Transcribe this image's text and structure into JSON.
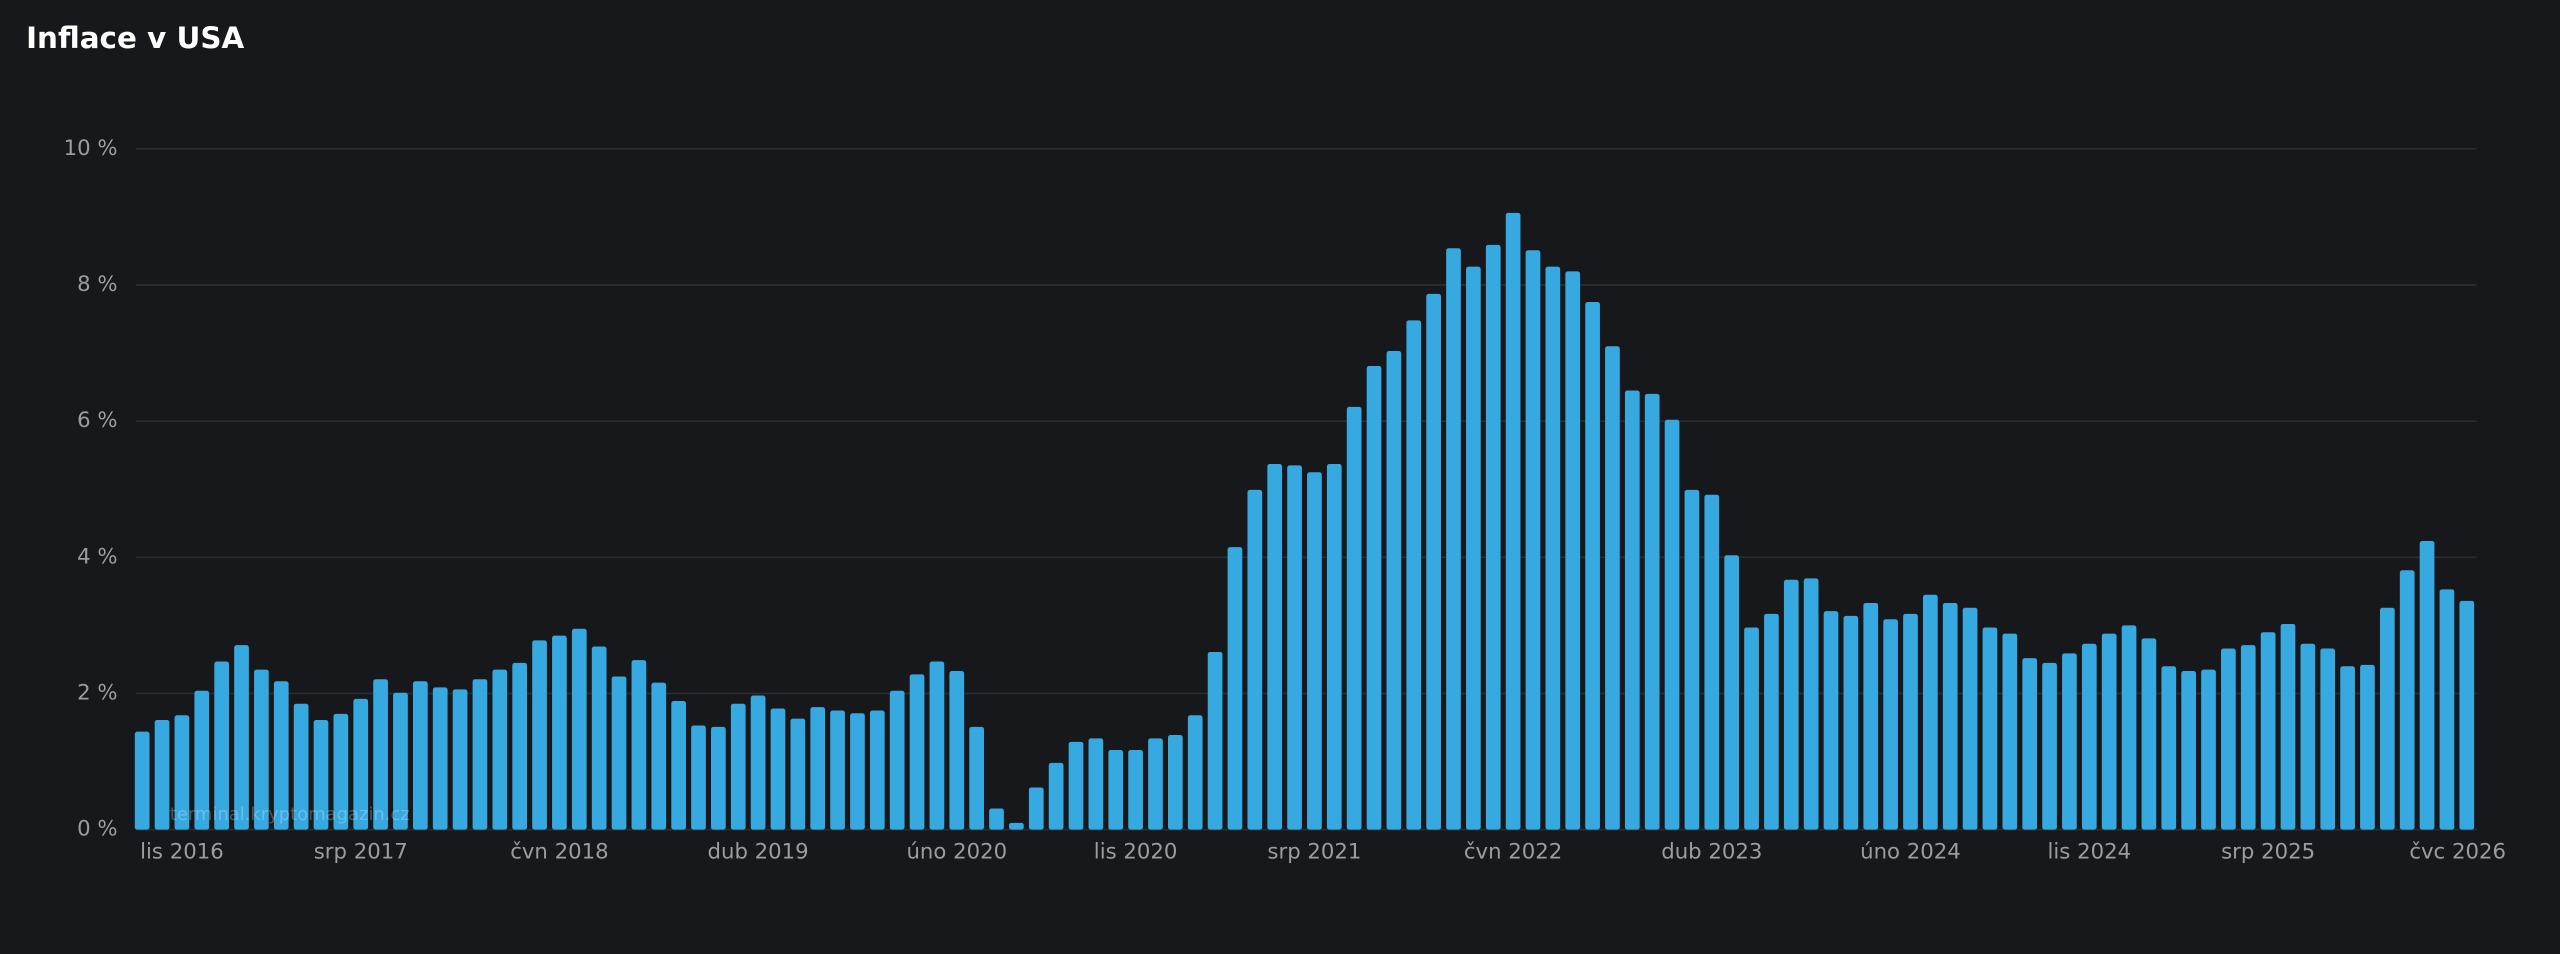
{
  "chart_data": {
    "type": "bar",
    "title": "Inflace v USA",
    "watermark": "terminal.kryptomagazin.cz",
    "color": "#36a9e1",
    "grid": true,
    "categories": [
      null,
      null,
      "lis 2016",
      null,
      null,
      null,
      null,
      null,
      null,
      null,
      null,
      "srp 2017",
      null,
      null,
      null,
      null,
      null,
      null,
      null,
      null,
      null,
      "čvn 2018",
      null,
      null,
      null,
      null,
      null,
      null,
      null,
      null,
      null,
      "dub 2019",
      null,
      null,
      null,
      null,
      null,
      null,
      null,
      null,
      null,
      "úno 2020",
      null,
      null,
      null,
      null,
      null,
      null,
      null,
      null,
      "lis 2020",
      null,
      null,
      null,
      null,
      null,
      null,
      null,
      null,
      "srp 2021",
      null,
      null,
      null,
      null,
      null,
      null,
      null,
      null,
      null,
      "čvn 2022",
      null,
      null,
      null,
      null,
      null,
      null,
      null,
      null,
      null,
      "dub 2023",
      null,
      null,
      null,
      null,
      null,
      null,
      null,
      null,
      null,
      "úno 2024",
      null,
      null,
      null,
      null,
      null,
      null,
      null,
      null,
      "lis 2024",
      null,
      null,
      null,
      null,
      null,
      null,
      null,
      null,
      "srp 2025",
      null,
      null,
      null,
      null,
      null,
      null,
      null,
      null,
      null,
      "čvc 2026"
    ],
    "values": [
      1.44,
      1.61,
      1.68,
      2.04,
      2.47,
      2.71,
      2.35,
      2.18,
      1.85,
      1.61,
      1.7,
      1.92,
      2.21,
      2.01,
      2.18,
      2.09,
      2.06,
      2.21,
      2.35,
      2.45,
      2.78,
      2.85,
      2.95,
      2.69,
      2.25,
      2.49,
      2.16,
      1.89,
      1.53,
      1.51,
      1.85,
      1.97,
      1.78,
      1.63,
      1.8,
      1.75,
      1.71,
      1.75,
      2.04,
      2.28,
      2.47,
      2.33,
      1.51,
      0.31,
      0.1,
      0.62,
      0.98,
      1.29,
      1.34,
      1.17,
      1.17,
      1.34,
      1.39,
      1.68,
      2.61,
      4.15,
      4.99,
      5.37,
      5.35,
      5.25,
      5.37,
      6.21,
      6.81,
      7.03,
      7.48,
      7.87,
      8.54,
      8.27,
      8.59,
      9.06,
      8.51,
      8.27,
      8.2,
      7.75,
      7.1,
      6.45,
      6.4,
      6.02,
      4.99,
      4.92,
      4.03,
      2.97,
      3.17,
      3.67,
      3.69,
      3.21,
      3.14,
      3.33,
      3.09,
      3.17,
      3.45,
      3.33,
      3.26,
      2.97,
      2.88,
      2.52,
      2.45,
      2.59,
      2.73,
      2.88,
      3.0,
      2.81,
      2.4,
      2.33,
      2.35,
      2.66,
      2.71,
      2.9,
      3.02,
      2.73,
      2.66,
      2.4,
      2.42,
      3.26,
      3.81,
      4.24,
      3.53,
      3.36
    ],
    "ylim": [
      0,
      10
    ],
    "yticks": [
      {
        "value": 0,
        "label": "0 %"
      },
      {
        "value": 2,
        "label": "2 %"
      },
      {
        "value": 4,
        "label": "4 %"
      },
      {
        "value": 6,
        "label": "6 %"
      },
      {
        "value": 8,
        "label": "8 %"
      },
      {
        "value": 10,
        "label": "10 %"
      }
    ]
  }
}
